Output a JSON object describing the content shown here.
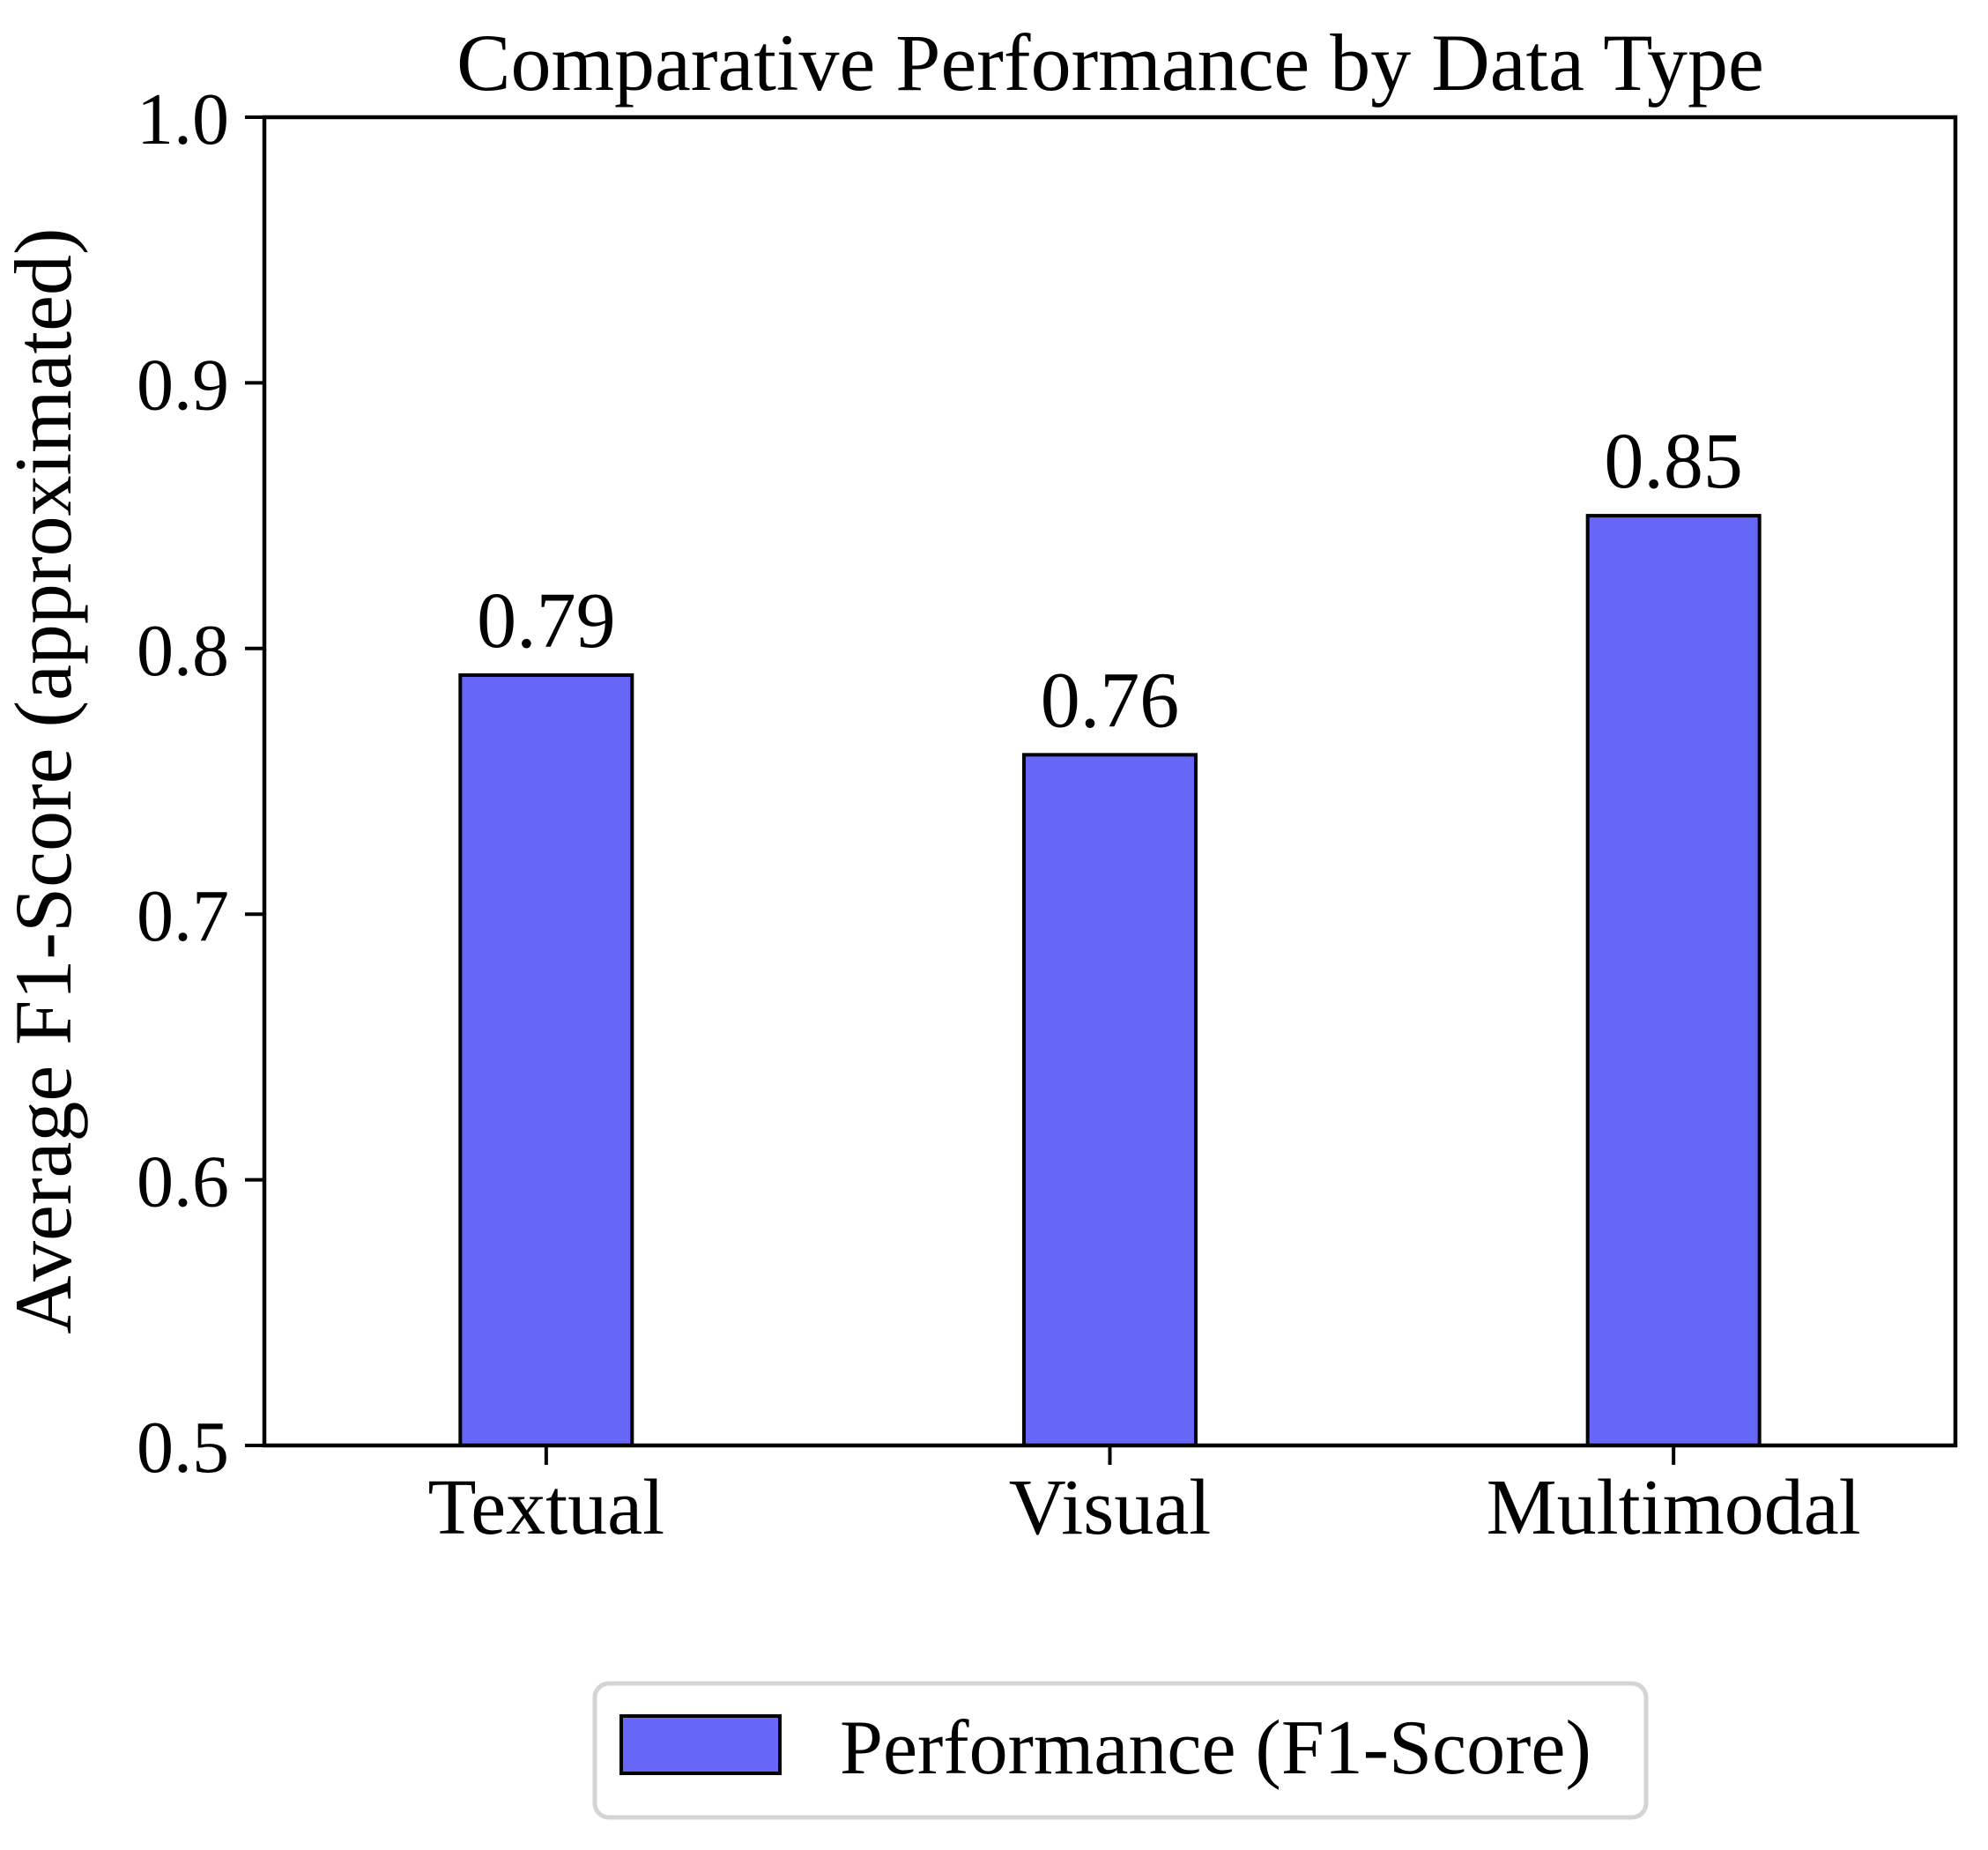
{
  "chart_data": {
    "type": "bar",
    "title": "Comparative Performance by Data Type",
    "ylabel": "Average F1-Score (approximated)",
    "xlabel": "",
    "categories": [
      "Textual",
      "Visual",
      "Multimodal"
    ],
    "values": [
      0.79,
      0.76,
      0.85
    ],
    "bar_value_labels": [
      "0.79",
      "0.76",
      "0.85"
    ],
    "ylim": [
      0.5,
      1.0
    ],
    "yticks": [
      0.5,
      0.6,
      0.7,
      0.8,
      0.9,
      1.0
    ],
    "ytick_labels": [
      "0.5",
      "0.6",
      "0.7",
      "0.8",
      "0.9",
      "1.0"
    ],
    "grid": false,
    "legend_position": "lower center",
    "bar_color": "#6666f7",
    "bar_edge_color": "#000000",
    "axis_color": "#000000",
    "legend": {
      "label": "Performance (F1-Score)",
      "border_color": "#d4d4d4",
      "background": "#ffffff"
    }
  }
}
